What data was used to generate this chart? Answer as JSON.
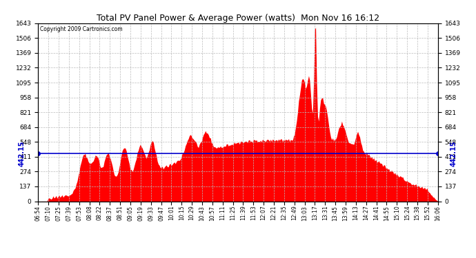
{
  "title": "Total PV Panel Power & Average Power (watts)  Mon Nov 16 16:12",
  "copyright": "Copyright 2009 Cartronics.com",
  "average_line_value": 442.15,
  "y_max": 1642.6,
  "y_min": 0.0,
  "y_ticks": [
    0.0,
    136.9,
    273.8,
    410.6,
    547.5,
    684.4,
    821.3,
    958.2,
    1095.0,
    1231.9,
    1368.8,
    1505.7,
    1642.6
  ],
  "fill_color": "#FF0000",
  "line_color": "#0000CC",
  "background_color": "#FFFFFF",
  "grid_color": "#AAAAAA",
  "title_color": "#000000",
  "x_labels": [
    "06:54",
    "07:10",
    "07:25",
    "07:39",
    "07:53",
    "08:08",
    "08:22",
    "08:37",
    "08:51",
    "09:05",
    "09:19",
    "09:33",
    "09:47",
    "10:01",
    "10:15",
    "10:29",
    "10:43",
    "10:57",
    "11:11",
    "11:25",
    "11:39",
    "11:53",
    "12:07",
    "12:21",
    "12:35",
    "12:49",
    "13:03",
    "13:17",
    "13:31",
    "13:45",
    "13:59",
    "14:13",
    "14:27",
    "14:41",
    "14:55",
    "15:10",
    "15:24",
    "15:38",
    "15:52",
    "16:06"
  ],
  "num_points": 400
}
